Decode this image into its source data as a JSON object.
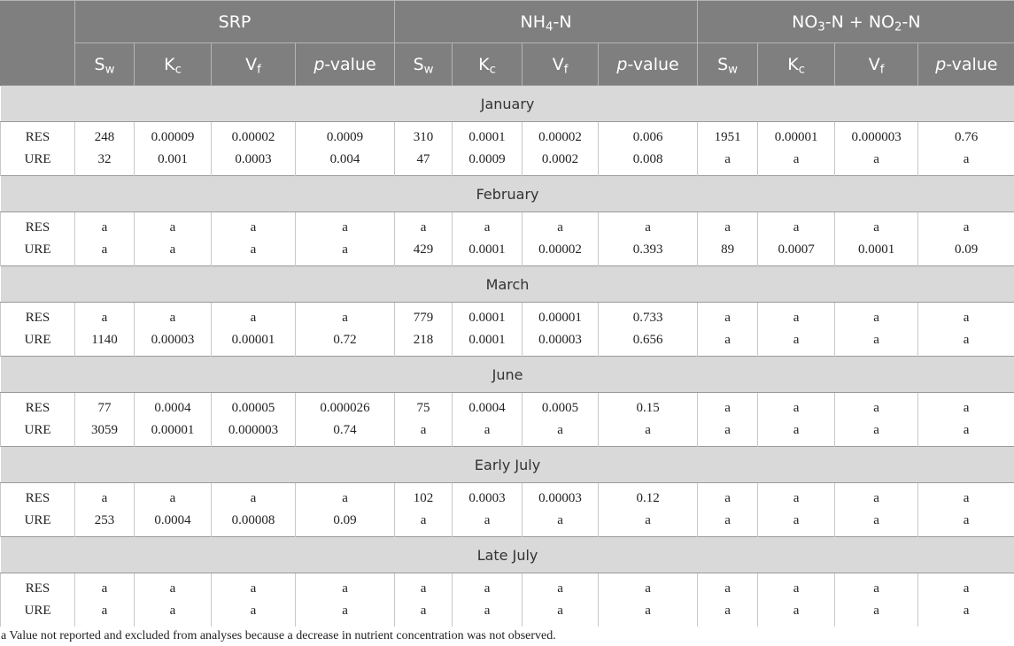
{
  "header": {
    "groups": [
      {
        "base": "SRP",
        "sub1": "",
        "mid": "",
        "sub2": "",
        "tail": ""
      },
      {
        "base": "NH",
        "sub1": "4",
        "mid": "-N",
        "sub2": "",
        "tail": ""
      },
      {
        "base": "NO",
        "sub1": "3",
        "mid": "-N + NO",
        "sub2": "2",
        "tail": "-N"
      }
    ],
    "columns": [
      {
        "base": "S",
        "sub": "w",
        "italic": false
      },
      {
        "base": "K",
        "sub": "c",
        "italic": false
      },
      {
        "base": "V",
        "sub": "f",
        "italic": false
      },
      {
        "base": "p",
        "sub": "",
        "rest": "-value",
        "italic": true
      }
    ]
  },
  "sections": [
    {
      "month": "January",
      "rows": [
        {
          "label": "RES",
          "values": [
            "248",
            "0.00009",
            "0.00002",
            "0.0009",
            "310",
            "0.0001",
            "0.00002",
            "0.006",
            "1951",
            "0.00001",
            "0.000003",
            "0.76"
          ]
        },
        {
          "label": "URE",
          "values": [
            "32",
            "0.001",
            "0.0003",
            "0.004",
            "47",
            "0.0009",
            "0.0002",
            "0.008",
            "a",
            "a",
            "a",
            "a"
          ]
        }
      ]
    },
    {
      "month": "February",
      "rows": [
        {
          "label": "RES",
          "values": [
            "a",
            "a",
            "a",
            "a",
            "a",
            "a",
            "a",
            "a",
            "a",
            "a",
            "a",
            "a"
          ]
        },
        {
          "label": "URE",
          "values": [
            "a",
            "a",
            "a",
            "a",
            "429",
            "0.0001",
            "0.00002",
            "0.393",
            "89",
            "0.0007",
            "0.0001",
            "0.09"
          ]
        }
      ]
    },
    {
      "month": "March",
      "rows": [
        {
          "label": "RES",
          "values": [
            "a",
            "a",
            "a",
            "a",
            "779",
            "0.0001",
            "0.00001",
            "0.733",
            "a",
            "a",
            "a",
            "a"
          ]
        },
        {
          "label": "URE",
          "values": [
            "1140",
            "0.00003",
            "0.00001",
            "0.72",
            "218",
            "0.0001",
            "0.00003",
            "0.656",
            "a",
            "a",
            "a",
            "a"
          ]
        }
      ]
    },
    {
      "month": "June",
      "rows": [
        {
          "label": "RES",
          "values": [
            "77",
            "0.0004",
            "0.00005",
            "0.000026",
            "75",
            "0.0004",
            "0.0005",
            "0.15",
            "a",
            "a",
            "a",
            "a"
          ]
        },
        {
          "label": "URE",
          "values": [
            "3059",
            "0.00001",
            "0.000003",
            "0.74",
            "a",
            "a",
            "a",
            "a",
            "a",
            "a",
            "a",
            "a"
          ]
        }
      ]
    },
    {
      "month": "Early July",
      "rows": [
        {
          "label": "RES",
          "values": [
            "a",
            "a",
            "a",
            "a",
            "102",
            "0.0003",
            "0.00003",
            "0.12",
            "a",
            "a",
            "a",
            "a"
          ]
        },
        {
          "label": "URE",
          "values": [
            "253",
            "0.0004",
            "0.00008",
            "0.09",
            "a",
            "a",
            "a",
            "a",
            "a",
            "a",
            "a",
            "a"
          ]
        }
      ]
    },
    {
      "month": "Late July",
      "rows": [
        {
          "label": "RES",
          "values": [
            "a",
            "a",
            "a",
            "a",
            "a",
            "a",
            "a",
            "a",
            "a",
            "a",
            "a",
            "a"
          ]
        },
        {
          "label": "URE",
          "values": [
            "a",
            "a",
            "a",
            "a",
            "a",
            "a",
            "a",
            "a",
            "a",
            "a",
            "a",
            "a"
          ]
        }
      ]
    }
  ],
  "footnote": "a Value not reported and excluded from analyses because a decrease in nutrient concentration was not observed."
}
